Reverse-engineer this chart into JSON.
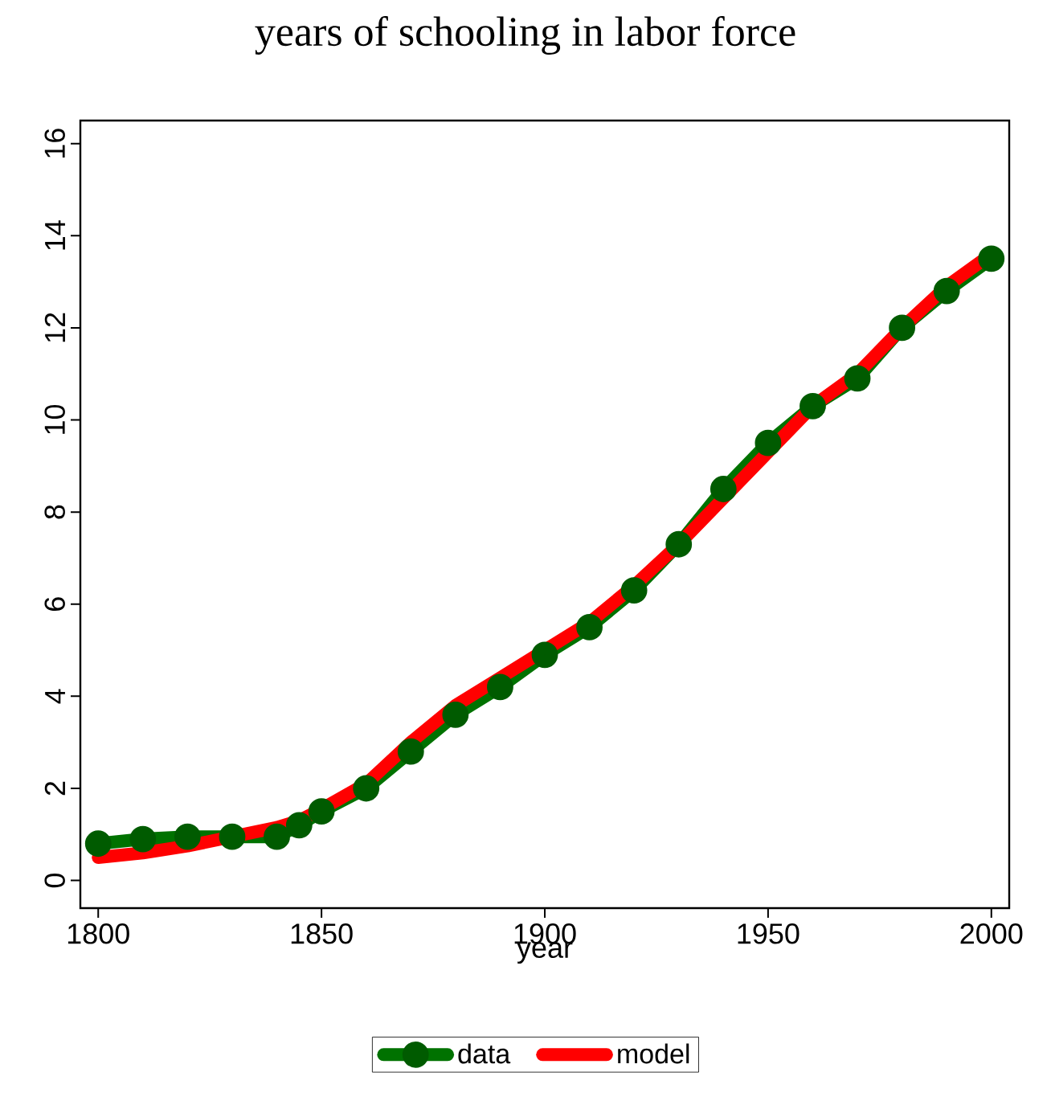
{
  "chart_data": {
    "type": "line",
    "title": "years of schooling in labor force",
    "xlabel": "year",
    "x": [
      1800,
      1810,
      1820,
      1830,
      1840,
      1845,
      1850,
      1860,
      1870,
      1880,
      1890,
      1900,
      1910,
      1920,
      1930,
      1940,
      1950,
      1960,
      1970,
      1980,
      1990,
      2000
    ],
    "series": [
      {
        "name": "data",
        "color": "#007200",
        "marker": "circle",
        "values": [
          0.8,
          0.9,
          0.95,
          0.95,
          0.95,
          1.2,
          1.5,
          2.0,
          2.8,
          3.6,
          4.2,
          4.9,
          5.5,
          6.3,
          7.3,
          8.5,
          9.5,
          10.3,
          10.9,
          12.0,
          12.8,
          13.5
        ]
      },
      {
        "name": "model",
        "color": "#ff0000",
        "marker": "none",
        "values": [
          0.5,
          0.6,
          0.75,
          0.95,
          1.15,
          1.3,
          1.55,
          2.1,
          3.0,
          3.8,
          4.4,
          5.0,
          5.6,
          6.4,
          7.3,
          8.3,
          9.3,
          10.3,
          11.0,
          12.0,
          12.9,
          13.6
        ]
      }
    ],
    "xlim": [
      1796,
      2004
    ],
    "ylim": [
      -0.6,
      16.5
    ],
    "xticks": [
      1800,
      1850,
      1900,
      1950,
      2000
    ],
    "yticks": [
      0,
      2,
      4,
      6,
      8,
      10,
      12,
      14,
      16
    ],
    "grid": false,
    "legend": "bottom",
    "line_style": "solid"
  }
}
